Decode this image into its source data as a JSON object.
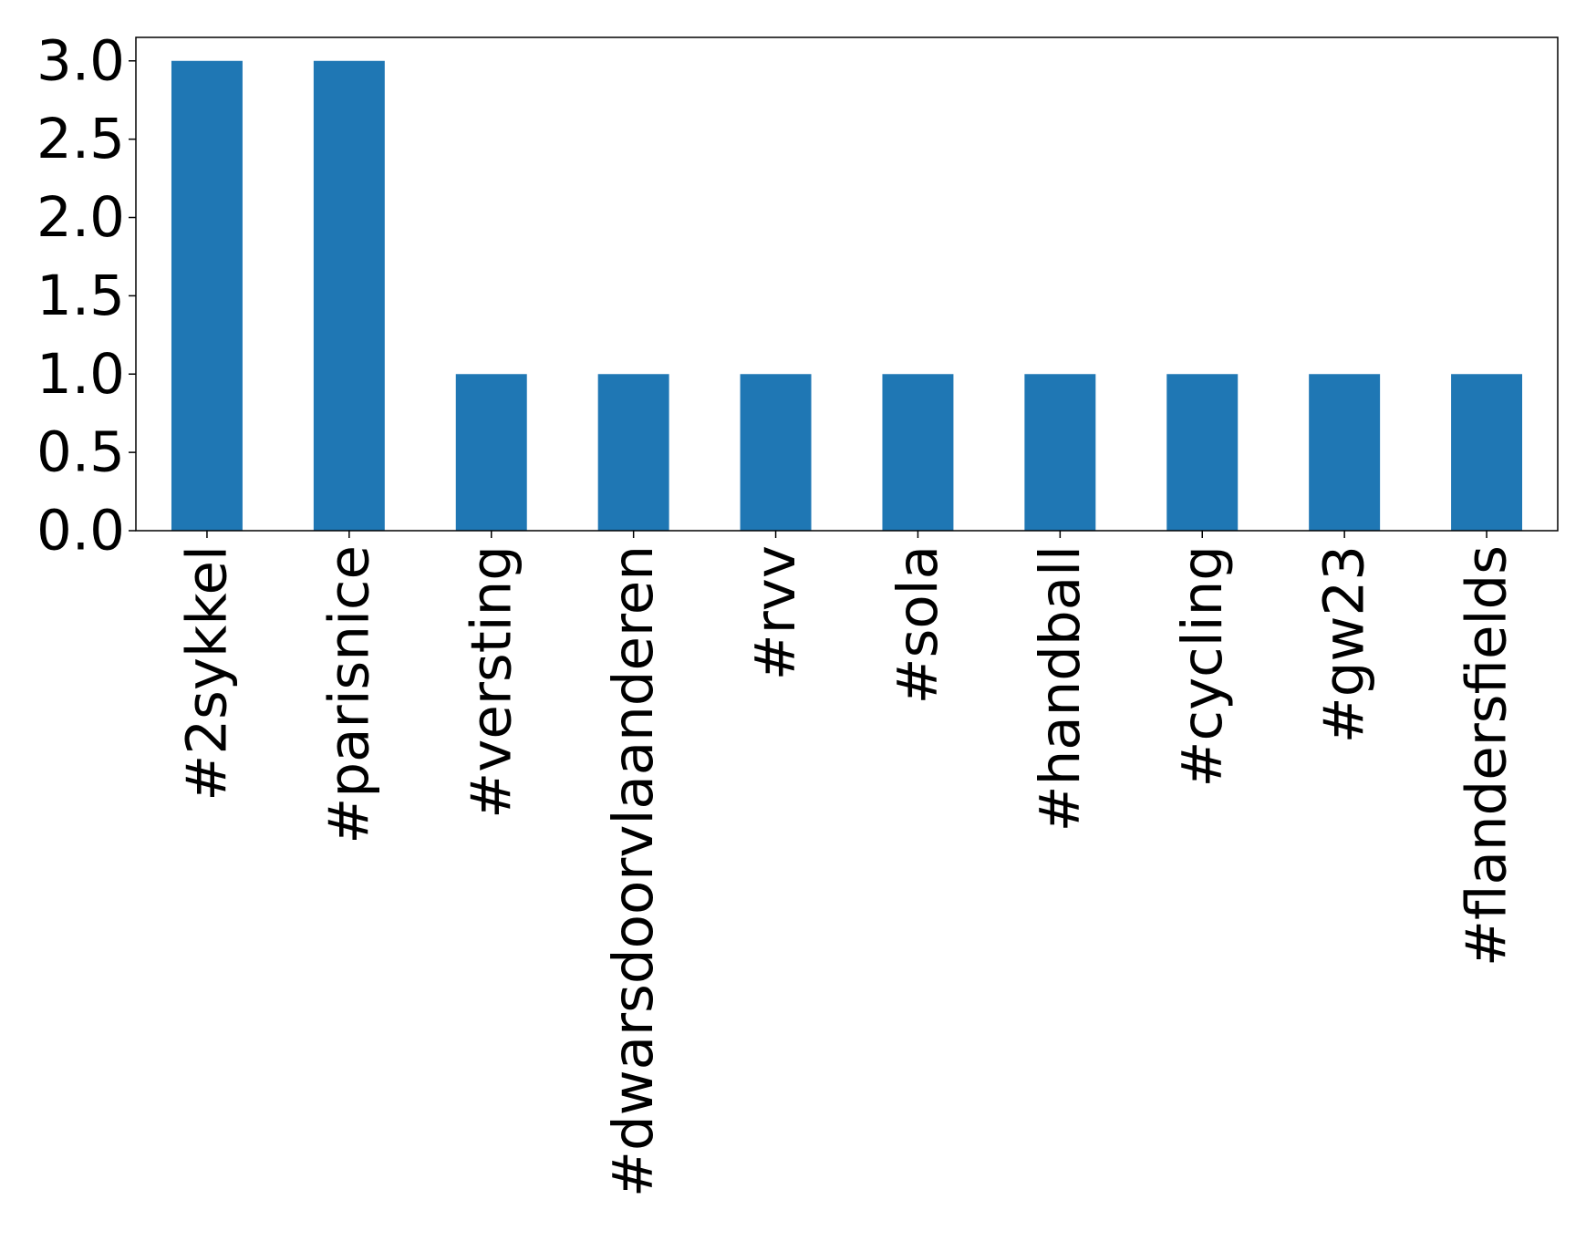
{
  "chart_data": {
    "type": "bar",
    "categories": [
      "#2sykkel",
      "#parisnice",
      "#versting",
      "#dwarsdoorvlaanderen",
      "#rvv",
      "#sola",
      "#handball",
      "#cycling",
      "#gw23",
      "#flandersfields"
    ],
    "values": [
      3,
      3,
      1,
      1,
      1,
      1,
      1,
      1,
      1,
      1
    ],
    "color": "#1f77b4",
    "ylim": [
      0,
      3.15
    ],
    "yticks": [
      {
        "value": 0,
        "label": "0.0"
      },
      {
        "value": 0.5,
        "label": "0.5"
      },
      {
        "value": 1,
        "label": "1.0"
      },
      {
        "value": 1.5,
        "label": "1.5"
      },
      {
        "value": 2,
        "label": "2.0"
      },
      {
        "value": 2.5,
        "label": "2.5"
      },
      {
        "value": 3,
        "label": "3.0"
      }
    ],
    "grid": false
  }
}
